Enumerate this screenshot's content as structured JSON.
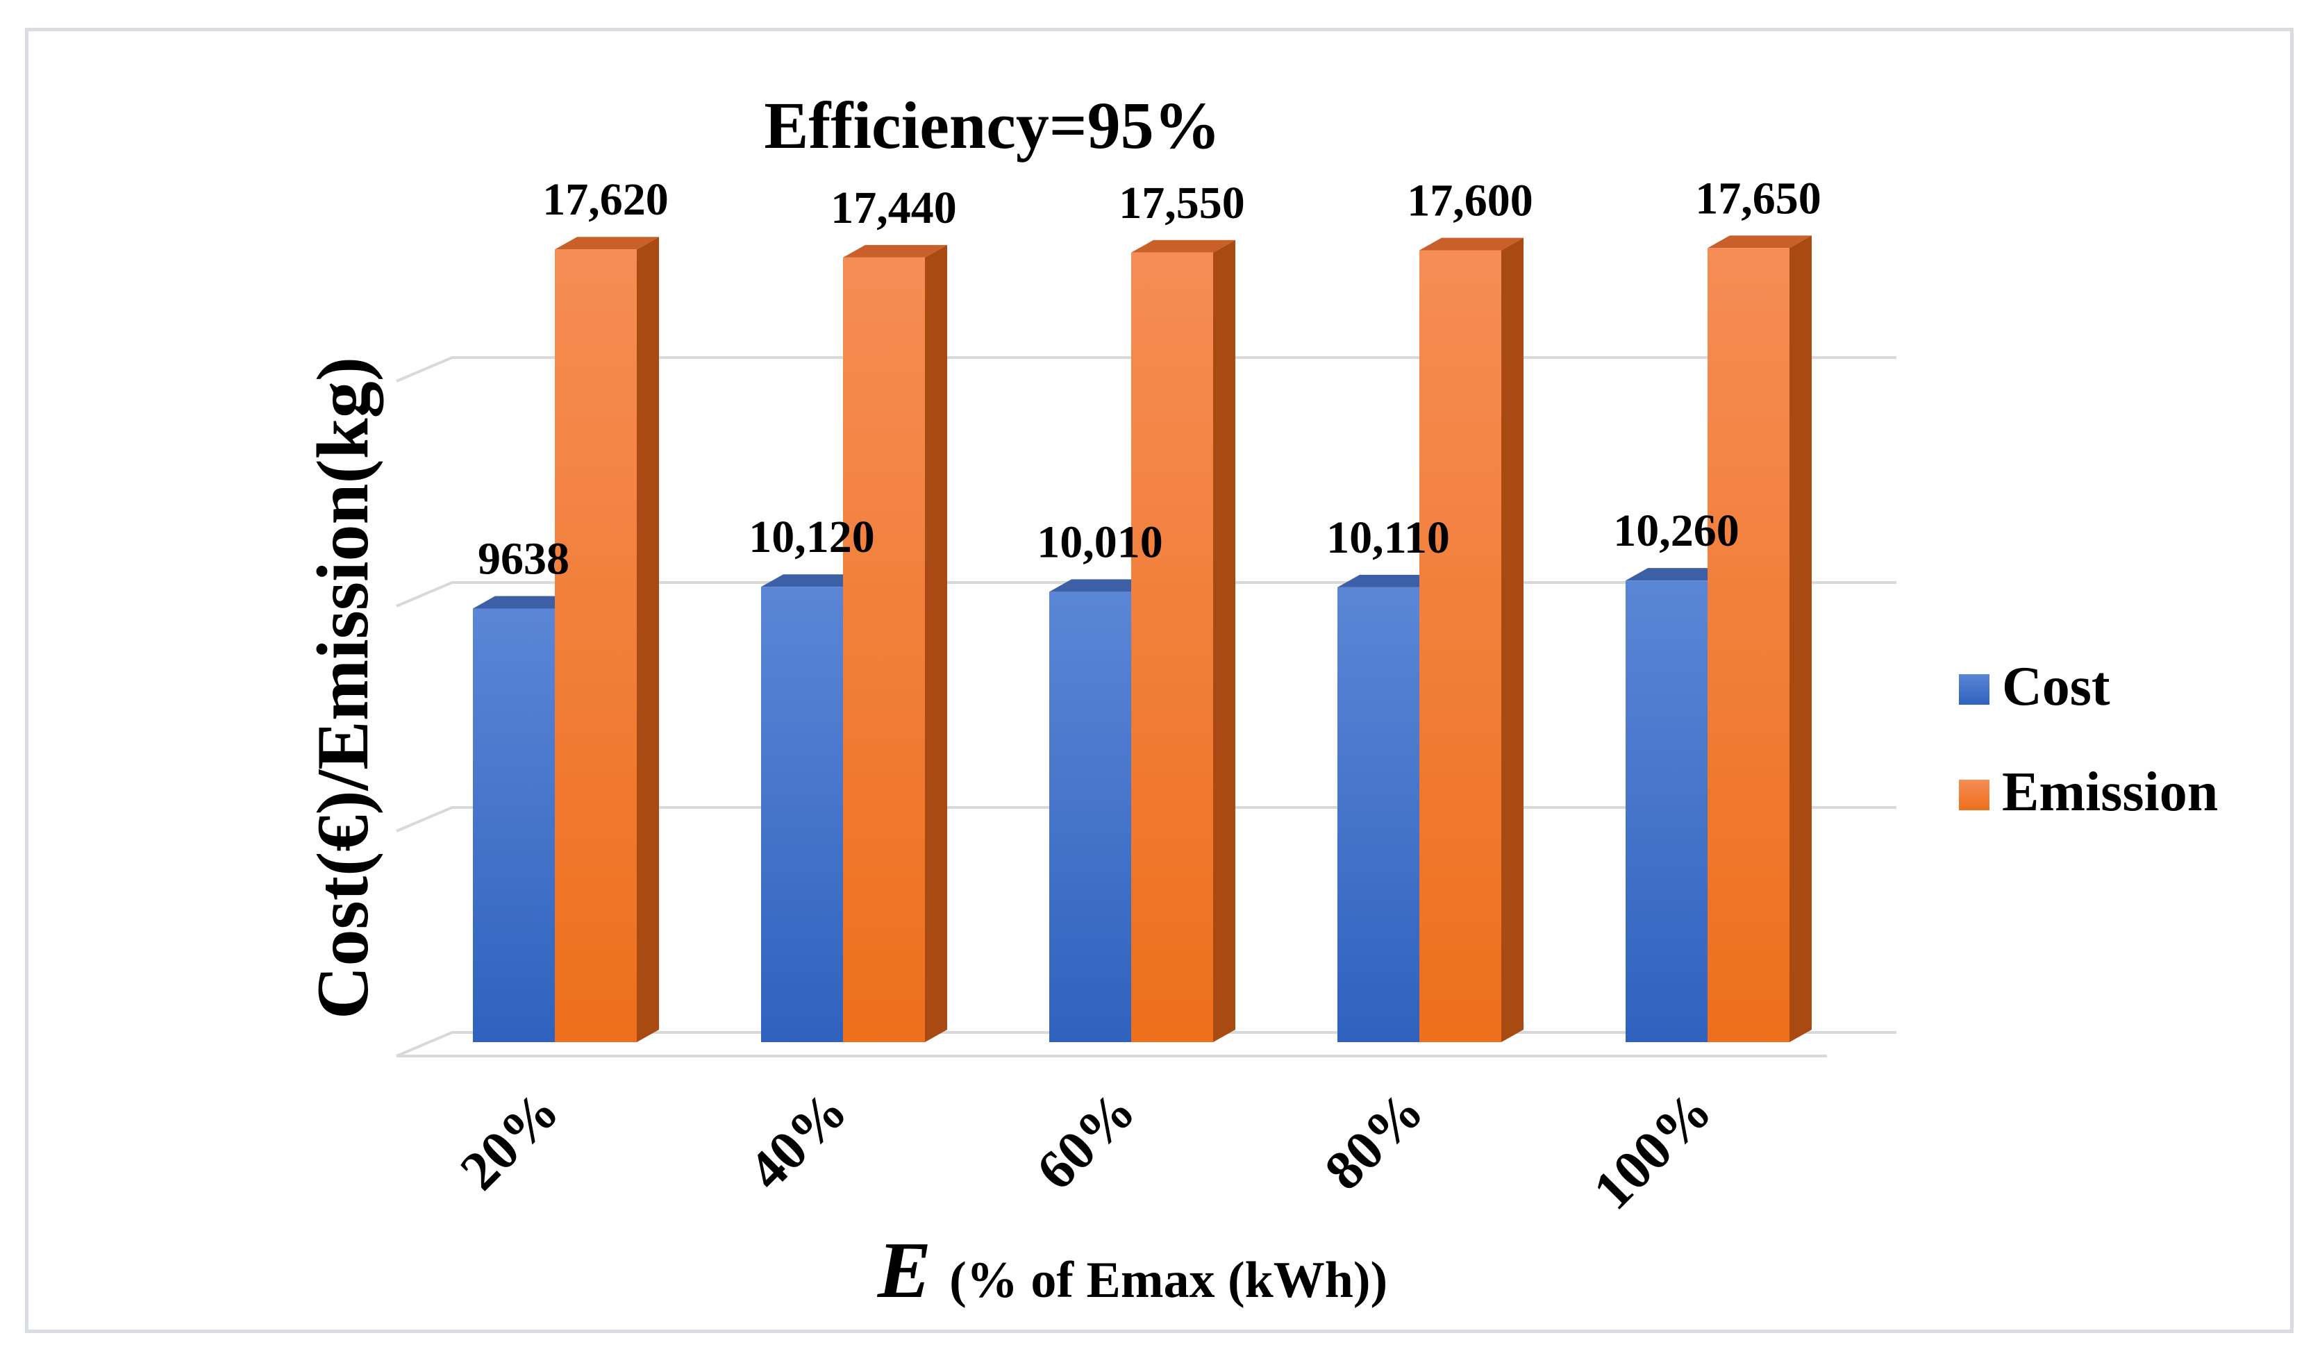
{
  "chart_data": {
    "type": "bar",
    "title": "Efficiency=95%",
    "ylabel": "Cost(€)/Emission(kg)",
    "xlabel_italic": "E",
    "xlabel": "(% of Emax (kWh))",
    "categories": [
      "20%",
      "40%",
      "60%",
      "80%",
      "100%"
    ],
    "series": [
      {
        "name": "Cost",
        "values": [
          9638,
          10120,
          10010,
          10110,
          10260
        ],
        "value_labels": [
          "9638",
          "10,120",
          "10,010",
          "10,110",
          "10,260"
        ],
        "color": "#4472c4"
      },
      {
        "name": "Emission",
        "values": [
          17620,
          17440,
          17550,
          17600,
          17650
        ],
        "value_labels": [
          "17,620",
          "17,440",
          "17,550",
          "17,600",
          "17,650"
        ],
        "color": "#ed7d31"
      }
    ],
    "ylim": [
      0,
      20000
    ],
    "grid": true,
    "legend_position": "right",
    "style": "3d-clustered-column"
  }
}
